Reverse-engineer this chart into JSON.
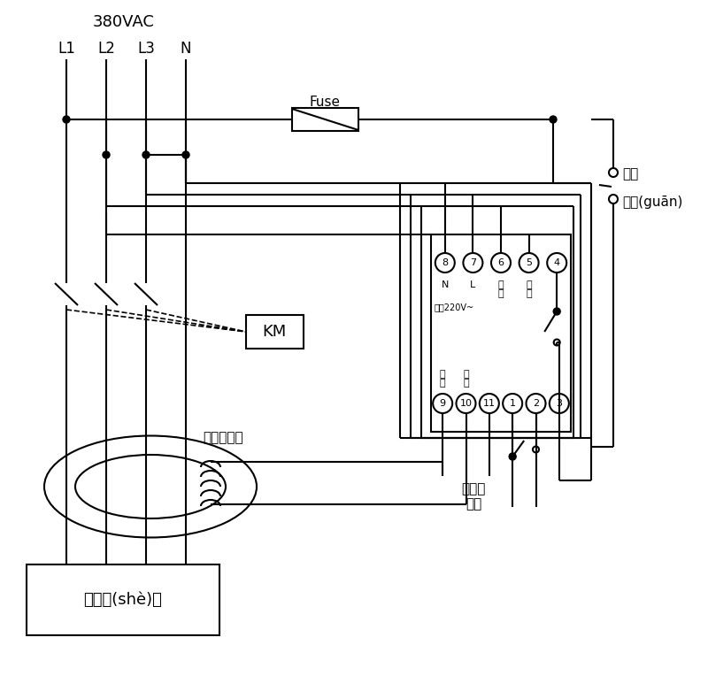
{
  "bg_color": "#ffffff",
  "lc": "#000000",
  "voltage_label": "380VAC",
  "phase_labels": [
    "L1",
    "L2",
    "L3",
    "N"
  ],
  "fuse_label": "Fuse",
  "km_label": "KM",
  "transformer_label": "零序互感器",
  "device_label": "用戶設(shè)備",
  "alarm_line1": "接聲光",
  "alarm_line2": "報警",
  "self_lock_line1": "自鎖",
  "self_lock_line2": "開關(guān)",
  "term_top": [
    "8",
    "7",
    "6",
    "5",
    "4"
  ],
  "term_bot": [
    "9",
    "10",
    "11",
    "1",
    "2",
    "3"
  ],
  "term_top_sub": [
    "N",
    "L",
    "試\n驗",
    "試\n驗",
    ""
  ],
  "term_sub_note": "電源220V~",
  "term_bot_sub": [
    "信\n號",
    "信\n號",
    "",
    "",
    "",
    ""
  ]
}
